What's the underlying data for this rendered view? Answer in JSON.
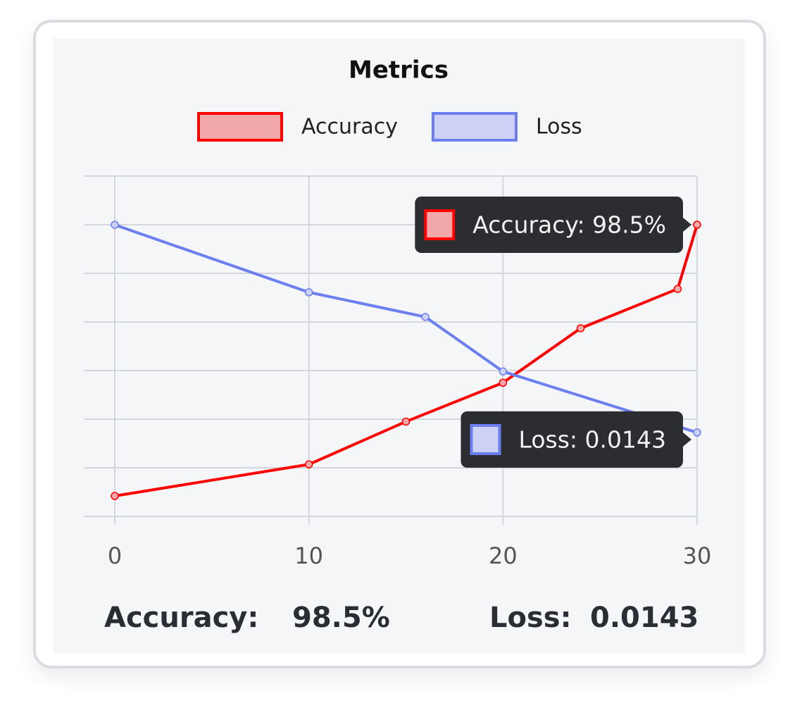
{
  "chart_data": {
    "type": "line",
    "title": "Metrics",
    "series": [
      {
        "name": "Accuracy",
        "color": "#ff0000",
        "fill": "#f2a7a8",
        "x": [
          0,
          10,
          15,
          20,
          24,
          29,
          30
        ],
        "values": [
          42.7,
          49.2,
          58,
          66,
          77.2,
          85.3,
          98.5
        ]
      },
      {
        "name": "Loss",
        "color": "#6b7ff0",
        "fill": "#ccd1f5",
        "axis": "y2",
        "x": [
          0,
          10,
          16,
          20,
          30
        ],
        "values": [
          0.0497,
          0.0382,
          0.034,
          0.0247,
          0.0143
        ]
      }
    ],
    "xlim": [
      0,
      30
    ],
    "xticks": [
      0,
      10,
      20,
      30
    ],
    "ylim": [
      38.5,
      108.5
    ],
    "y2lim": [
      0,
      0.058
    ],
    "grid": true,
    "tooltips": [
      {
        "series": 0,
        "label": "Accuracy: 98.5%"
      },
      {
        "series": 1,
        "label": "Loss: 0.0143"
      }
    ],
    "summary": [
      {
        "label": "Accuracy:",
        "value": "98.5%"
      },
      {
        "label": "Loss:",
        "value": "0.0143"
      }
    ]
  }
}
